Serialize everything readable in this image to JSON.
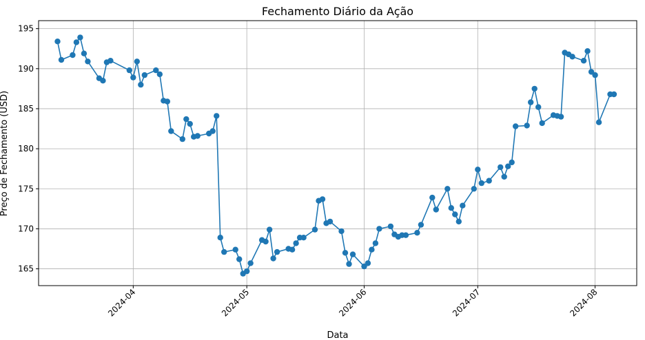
{
  "chart_data": {
    "type": "line",
    "title": "Fechamento Diário da Ação",
    "xlabel": "Data",
    "ylabel": "Preço de Fechamento (USD)",
    "x_tick_labels": [
      "2024-04",
      "2024-05",
      "2024-06",
      "2024-07",
      "2024-08"
    ],
    "x_tick_dates": [
      "2024-04-01",
      "2024-05-01",
      "2024-06-01",
      "2024-07-01",
      "2024-08-01"
    ],
    "y_ticks": [
      165,
      170,
      175,
      180,
      185,
      190,
      195
    ],
    "xlim": [
      "2024-03-07",
      "2024-08-12"
    ],
    "ylim": [
      162.9,
      196.0
    ],
    "grid": true,
    "marker": "circle",
    "color": "#1f77b4",
    "series": [
      {
        "x": [
          "2024-03-12",
          "2024-03-13",
          "2024-03-16",
          "2024-03-17",
          "2024-03-18",
          "2024-03-19",
          "2024-03-20",
          "2024-03-23",
          "2024-03-24",
          "2024-03-25",
          "2024-03-26",
          "2024-03-31",
          "2024-04-01",
          "2024-04-02",
          "2024-04-03",
          "2024-04-04",
          "2024-04-07",
          "2024-04-08",
          "2024-04-09",
          "2024-04-10",
          "2024-04-11",
          "2024-04-14",
          "2024-04-15",
          "2024-04-16",
          "2024-04-17",
          "2024-04-18",
          "2024-04-21",
          "2024-04-22",
          "2024-04-23",
          "2024-04-24",
          "2024-04-25",
          "2024-04-28",
          "2024-04-29",
          "2024-04-30",
          "2024-05-01",
          "2024-05-02",
          "2024-05-05",
          "2024-05-06",
          "2024-05-07",
          "2024-05-08",
          "2024-05-09",
          "2024-05-12",
          "2024-05-13",
          "2024-05-14",
          "2024-05-15",
          "2024-05-16",
          "2024-05-19",
          "2024-05-20",
          "2024-05-21",
          "2024-05-22",
          "2024-05-23",
          "2024-05-26",
          "2024-05-27",
          "2024-05-28",
          "2024-05-29",
          "2024-06-01",
          "2024-06-02",
          "2024-06-03",
          "2024-06-04",
          "2024-06-05",
          "2024-06-08",
          "2024-06-09",
          "2024-06-10",
          "2024-06-11",
          "2024-06-12",
          "2024-06-15",
          "2024-06-16",
          "2024-06-19",
          "2024-06-20",
          "2024-06-23",
          "2024-06-24",
          "2024-06-25",
          "2024-06-26",
          "2024-06-27",
          "2024-06-30",
          "2024-07-01",
          "2024-07-02",
          "2024-07-04",
          "2024-07-07",
          "2024-07-08",
          "2024-07-09",
          "2024-07-10",
          "2024-07-11",
          "2024-07-14",
          "2024-07-15",
          "2024-07-16",
          "2024-07-17",
          "2024-07-18",
          "2024-07-21",
          "2024-07-22",
          "2024-07-23",
          "2024-07-24",
          "2024-07-25",
          "2024-07-26",
          "2024-07-29",
          "2024-07-30",
          "2024-07-31",
          "2024-08-01",
          "2024-08-02",
          "2024-08-05",
          "2024-08-06"
        ],
        "values": [
          193.4,
          191.1,
          191.7,
          193.3,
          193.9,
          191.9,
          190.9,
          188.8,
          188.5,
          190.8,
          191.0,
          189.8,
          188.9,
          190.9,
          188.0,
          189.2,
          189.8,
          189.3,
          186.0,
          185.9,
          182.2,
          181.2,
          183.7,
          183.1,
          181.5,
          181.6,
          181.9,
          182.2,
          184.1,
          168.9,
          167.1,
          167.4,
          166.2,
          164.4,
          164.7,
          165.7,
          168.6,
          168.4,
          169.9,
          166.3,
          167.1,
          167.5,
          167.4,
          168.2,
          168.9,
          168.9,
          169.9,
          173.5,
          173.7,
          170.7,
          170.9,
          169.7,
          167.0,
          165.6,
          166.8,
          165.3,
          165.7,
          167.4,
          168.2,
          170.0,
          170.3,
          169.3,
          169.0,
          169.2,
          169.2,
          169.5,
          170.5,
          173.9,
          172.4,
          175.0,
          172.6,
          171.8,
          170.9,
          172.9,
          175.0,
          177.4,
          175.7,
          176.0,
          177.7,
          176.5,
          177.8,
          178.3,
          182.8,
          182.9,
          185.8,
          187.5,
          185.2,
          183.2,
          184.2,
          184.1,
          184.0,
          192.0,
          191.8,
          191.5,
          191.0,
          192.2,
          189.6,
          189.2,
          183.3,
          186.8,
          186.8
        ]
      }
    ]
  }
}
